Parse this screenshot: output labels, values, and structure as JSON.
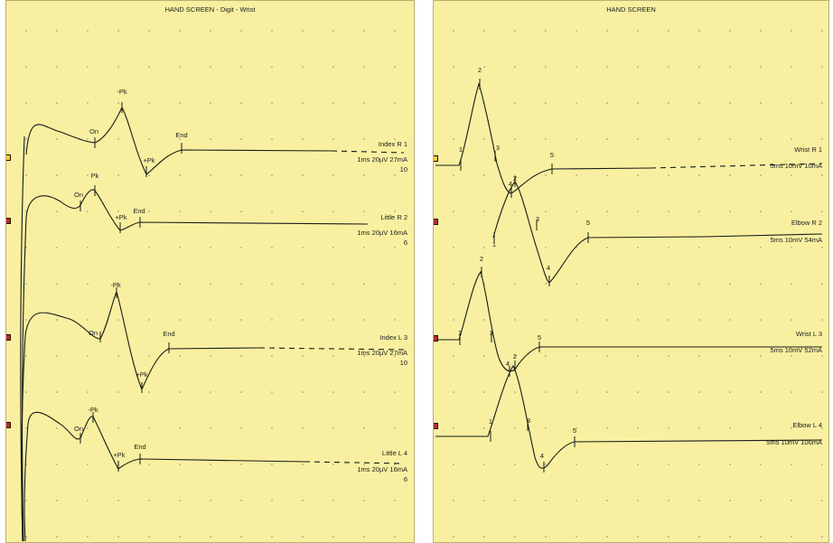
{
  "colors": {
    "background": "#f8f0a0",
    "trace": "#1a1a1a",
    "grid_dots": "#8a8a8a",
    "marker_first": "#f0d040",
    "marker_other": "#b03030"
  },
  "left": {
    "title": "HAND SCREEN - Digit - Wrist",
    "traces": [
      {
        "label": "Index R  1",
        "settings": "1ms 20µV 27mA",
        "number": "10",
        "markers": [
          "On",
          "-Pk",
          "+Pk",
          "End"
        ]
      },
      {
        "label": "Little R  2",
        "settings": "1ms 20µV 16mA",
        "number": "6",
        "markers": [
          "On",
          "Pk",
          "+Pk",
          "End"
        ]
      },
      {
        "label": "Index L  3",
        "settings": "1ms 20µV 27mA",
        "number": "10",
        "markers": [
          "On",
          "-Pk",
          "+Pk",
          "End"
        ]
      },
      {
        "label": "Little L  4",
        "settings": "1ms 20µV 16mA",
        "number": "6",
        "markers": [
          "On",
          "-Pk",
          "+Pk",
          "End"
        ]
      }
    ]
  },
  "right": {
    "title": "HAND SCREEN",
    "traces": [
      {
        "label": "Wrist R  1",
        "settings": "5ms 10mV 10mA",
        "markers": [
          "1",
          "2",
          "3",
          "4",
          "5"
        ]
      },
      {
        "label": "Elbow R  2",
        "settings": "5ms 10mV 54mA",
        "markers": [
          "1",
          "2",
          "3",
          "4",
          "5"
        ]
      },
      {
        "label": "Wrist L  3",
        "settings": "5ms 10mV 52mA",
        "markers": [
          "1",
          "2",
          "3",
          "4",
          "5"
        ]
      },
      {
        "label": "Elbow L  4",
        "settings": "5ms 10mV 106mA",
        "markers": [
          "1",
          "2",
          "3",
          "4",
          "5"
        ]
      }
    ]
  }
}
